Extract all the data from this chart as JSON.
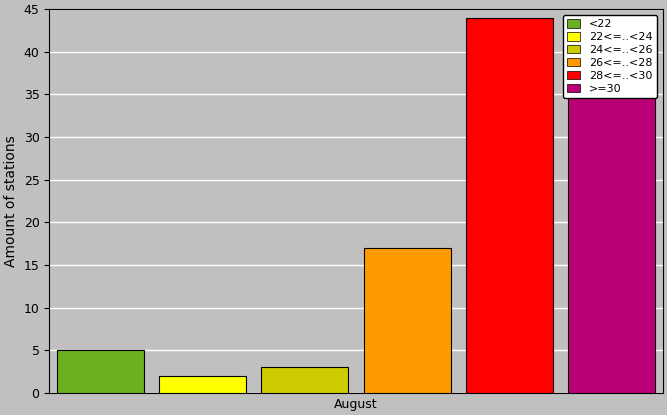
{
  "series": [
    {
      "label": "<22",
      "value": 5,
      "color": "#6ab020"
    },
    {
      "label": "22<=..<24",
      "value": 2,
      "color": "#ffff00"
    },
    {
      "label": "24<=..<26",
      "value": 3,
      "color": "#cccc00"
    },
    {
      "label": "26<=..<28",
      "value": 17,
      "color": "#ff9900"
    },
    {
      "label": "28<=..<30",
      "value": 44,
      "color": "#ff0000"
    },
    {
      "label": ">=30",
      "value": 42,
      "color": "#bb0077"
    }
  ],
  "ylabel": "Amount of stations",
  "xlabel": "August",
  "ylim": [
    0,
    45
  ],
  "yticks": [
    0,
    5,
    10,
    15,
    20,
    25,
    30,
    35,
    40,
    45
  ],
  "bg_color": "#c0c0c0",
  "legend_fontsize": 8,
  "ylabel_fontsize": 10,
  "xlabel_fontsize": 10,
  "tick_fontsize": 9,
  "bar_width": 0.85,
  "bar_positions": [
    1,
    2,
    3,
    4,
    5,
    6
  ]
}
